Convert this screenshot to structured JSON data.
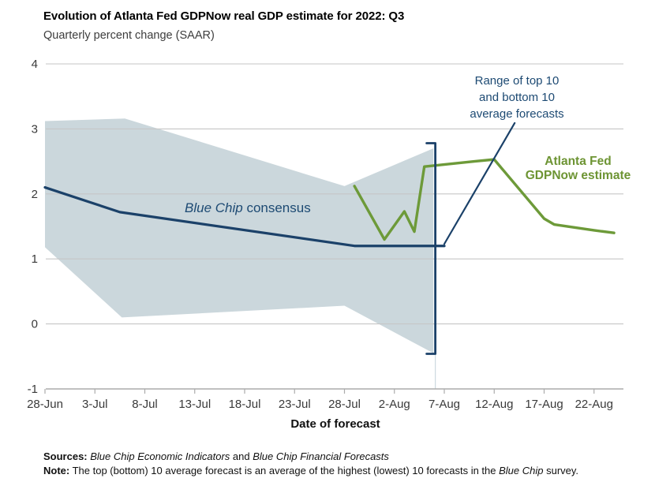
{
  "header": {
    "title": "Evolution of Atlanta Fed GDPNow real GDP estimate for 2022: Q3",
    "subtitle": "Quarterly percent change (SAAR)"
  },
  "chart_data": {
    "type": "line",
    "title": "Evolution of Atlanta Fed GDPNow real GDP estimate for 2022: Q3",
    "subtitle": "Quarterly percent change (SAAR)",
    "xlabel": "Date of forecast",
    "ylabel": "Quarterly percent change (SAAR)",
    "ylim": [
      -1,
      4
    ],
    "grid": true,
    "y_ticks": [
      4,
      3,
      2,
      1,
      0,
      -1
    ],
    "x_ticks": [
      {
        "label": "28-Jun",
        "day": 0
      },
      {
        "label": "3-Jul",
        "day": 5
      },
      {
        "label": "8-Jul",
        "day": 10
      },
      {
        "label": "13-Jul",
        "day": 15
      },
      {
        "label": "18-Jul",
        "day": 20
      },
      {
        "label": "23-Jul",
        "day": 25
      },
      {
        "label": "28-Jul",
        "day": 30
      },
      {
        "label": "2-Aug",
        "day": 35
      },
      {
        "label": "7-Aug",
        "day": 40
      },
      {
        "label": "12-Aug",
        "day": 45
      },
      {
        "label": "17-Aug",
        "day": 50
      },
      {
        "label": "22-Aug",
        "day": 55
      }
    ],
    "series": [
      {
        "name": "Blue Chip consensus",
        "kind": "line",
        "color": "#1b4169",
        "width": 3.2,
        "points": [
          {
            "date": "28-Jun",
            "day": 0,
            "value": 2.1
          },
          {
            "date": "6-Jul",
            "day": 7.5,
            "value": 1.72
          },
          {
            "date": "29-Jul",
            "day": 31,
            "value": 1.2
          },
          {
            "date": "7-Aug",
            "day": 40,
            "value": 1.2
          }
        ]
      },
      {
        "name": "Atlanta Fed GDPNow estimate",
        "kind": "line",
        "color": "#6d9a39",
        "width": 3.4,
        "points": [
          {
            "date": "29-Jul",
            "day": 31,
            "value": 2.12
          },
          {
            "date": "1-Aug",
            "day": 34,
            "value": 1.3
          },
          {
            "date": "3-Aug",
            "day": 36,
            "value": 1.73
          },
          {
            "date": "4-Aug",
            "day": 37,
            "value": 1.42
          },
          {
            "date": "5-Aug",
            "day": 38,
            "value": 2.42
          },
          {
            "date": "10-Aug",
            "day": 43,
            "value": 2.5
          },
          {
            "date": "12-Aug",
            "day": 45,
            "value": 2.53
          },
          {
            "date": "17-Aug",
            "day": 50,
            "value": 1.62
          },
          {
            "date": "18-Aug",
            "day": 51,
            "value": 1.53
          },
          {
            "date": "22-Aug",
            "day": 55,
            "value": 1.44
          },
          {
            "date": "24-Aug",
            "day": 57,
            "value": 1.4
          }
        ]
      },
      {
        "name": "Range of top 10 and bottom 10 average forecasts",
        "kind": "band",
        "color": "#cbd7dc",
        "top": [
          {
            "date": "28-Jun",
            "day": 0,
            "value": 3.12
          },
          {
            "date": "6-Jul",
            "day": 8,
            "value": 3.16
          },
          {
            "date": "28-Jul",
            "day": 30,
            "value": 2.12
          },
          {
            "date": "5-Aug",
            "day": 38.9,
            "value": 2.7
          }
        ],
        "bottom": [
          {
            "date": "28-Jun",
            "day": 0,
            "value": 1.18
          },
          {
            "date": "6-Jul",
            "day": 7.7,
            "value": 0.1
          },
          {
            "date": "28-Jul",
            "day": 30,
            "value": 0.28
          },
          {
            "date": "5-Aug",
            "day": 38.9,
            "value": -0.45
          }
        ]
      }
    ],
    "range_bracket": {
      "day": 39.1,
      "top": 2.78,
      "bottom": -0.46,
      "color": "#1b4169"
    },
    "leader_line": {
      "from": {
        "day": 40,
        "value": 1.23
      },
      "to": {
        "day": 47.05,
        "value": 3.09
      },
      "color": "#1b4169"
    },
    "legend_position": "annotations-inline"
  },
  "annotations": {
    "range": {
      "lines": [
        "Range of top 10",
        "and bottom 10",
        "average forecasts"
      ],
      "color": "#1d4a73"
    },
    "gdpnow": {
      "lines": [
        "Atlanta Fed",
        "GDPNow estimate"
      ],
      "color": "#6d9433"
    },
    "bluechip": {
      "italic": "Blue Chip",
      "rest": " consensus",
      "color": "#1d4a73"
    }
  },
  "x_axis_title": "Date of forecast",
  "footer": {
    "sources": {
      "label": "Sources:",
      "italic1": " Blue Chip Economic Indicators",
      "conj": " and ",
      "italic2": "Blue Chip Financial Forecasts"
    },
    "note": {
      "label": "Note:",
      "text1": " The top (bottom) 10 average forecast is an average of the highest (lowest) 10 forecasts in the ",
      "italic": "Blue Chip",
      "text2": " survey."
    }
  },
  "colors": {
    "navy": "#1b4169",
    "green": "#6d9a39",
    "band": "#cbd7dc",
    "gridline": "#c6c6c6",
    "axis": "#ababab",
    "tick_label": "#3a3a3a"
  }
}
